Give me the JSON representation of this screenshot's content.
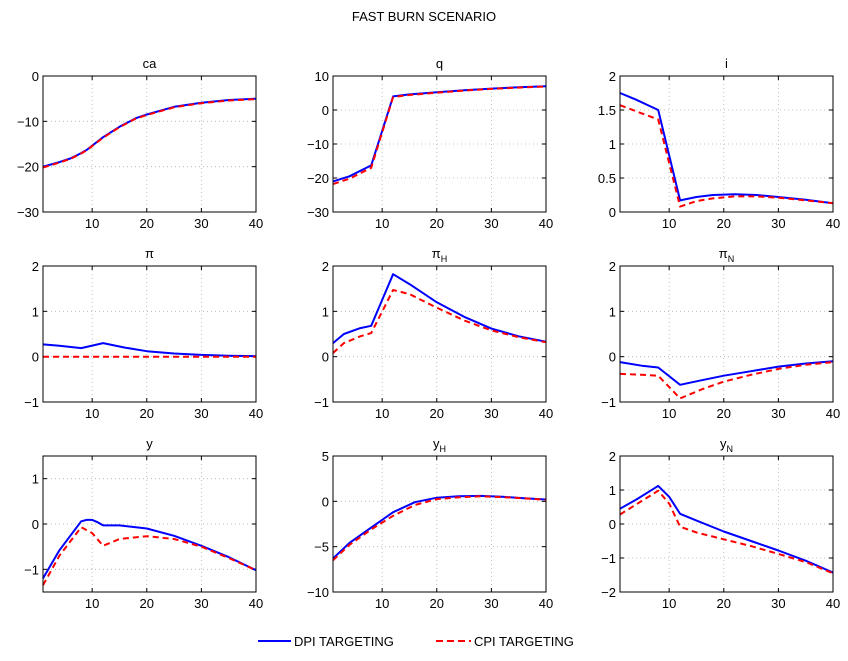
{
  "figure": {
    "title": "FAST BURN SCENARIO",
    "legend": {
      "placement": "bottom-center",
      "entries": [
        {
          "label": "DPI TARGETING",
          "color": "#0000ff",
          "dash": "solid"
        },
        {
          "label": "CPI TARGETING",
          "color": "#ff0000",
          "dash": "dashed"
        }
      ]
    }
  },
  "chart_data": [
    {
      "type": "line",
      "title": "ca",
      "xlim": [
        1,
        40
      ],
      "xticks": [
        10,
        20,
        30,
        40
      ],
      "ylim": [
        -30,
        0
      ],
      "yticks": [
        -30,
        -20,
        -10,
        0
      ],
      "grid": true,
      "series": [
        {
          "name": "DPI TARGETING",
          "x": [
            1,
            4,
            6,
            8,
            9,
            12,
            15,
            18,
            20,
            25,
            30,
            35,
            40
          ],
          "y": [
            -20,
            -19,
            -18.2,
            -17,
            -16.3,
            -13.5,
            -11.2,
            -9.3,
            -8.5,
            -6.8,
            -5.9,
            -5.3,
            -5
          ]
        },
        {
          "name": "CPI TARGETING",
          "x": [
            1,
            4,
            6,
            8,
            9,
            12,
            15,
            18,
            20,
            25,
            30,
            35,
            40
          ],
          "y": [
            -20.2,
            -19.1,
            -18.3,
            -17.1,
            -16.4,
            -13.6,
            -11.3,
            -9.4,
            -8.6,
            -6.9,
            -6,
            -5.4,
            -5.1
          ]
        }
      ]
    },
    {
      "type": "line",
      "title": "q",
      "xlim": [
        1,
        40
      ],
      "xticks": [
        10,
        20,
        30,
        40
      ],
      "ylim": [
        -30,
        10
      ],
      "yticks": [
        -30,
        -20,
        -10,
        0,
        10
      ],
      "grid": true,
      "series": [
        {
          "name": "DPI TARGETING",
          "x": [
            1,
            4,
            8,
            12,
            15,
            20,
            25,
            30,
            35,
            40
          ],
          "y": [
            -21,
            -19.5,
            -16.3,
            4,
            4.6,
            5.2,
            5.8,
            6.3,
            6.7,
            7
          ]
        },
        {
          "name": "CPI TARGETING",
          "x": [
            1,
            4,
            8,
            12,
            15,
            20,
            25,
            30,
            35,
            40
          ],
          "y": [
            -21.8,
            -20.2,
            -17,
            3.8,
            4.4,
            5.1,
            5.7,
            6.2,
            6.6,
            6.9
          ]
        }
      ]
    },
    {
      "type": "line",
      "title": "i",
      "xlim": [
        1,
        40
      ],
      "xticks": [
        10,
        20,
        30,
        40
      ],
      "ylim": [
        0,
        2
      ],
      "yticks": [
        0,
        0.5,
        1,
        1.5,
        2
      ],
      "grid": true,
      "series": [
        {
          "name": "DPI TARGETING",
          "x": [
            1,
            4,
            8,
            12,
            15,
            18,
            22,
            26,
            30,
            35,
            40
          ],
          "y": [
            1.75,
            1.65,
            1.5,
            0.17,
            0.22,
            0.25,
            0.26,
            0.25,
            0.22,
            0.18,
            0.13
          ]
        },
        {
          "name": "CPI TARGETING",
          "x": [
            1,
            4,
            8,
            12,
            15,
            18,
            22,
            26,
            30,
            35,
            40
          ],
          "y": [
            1.57,
            1.48,
            1.36,
            0.08,
            0.16,
            0.2,
            0.23,
            0.23,
            0.21,
            0.17,
            0.13
          ]
        }
      ]
    },
    {
      "type": "line",
      "title": "π",
      "xlim": [
        1,
        40
      ],
      "xticks": [
        10,
        20,
        30,
        40
      ],
      "ylim": [
        -1,
        2
      ],
      "yticks": [
        -1,
        0,
        1,
        2
      ],
      "grid": true,
      "series": [
        {
          "name": "DPI TARGETING",
          "x": [
            1,
            4,
            8,
            12,
            16,
            20,
            25,
            30,
            35,
            40
          ],
          "y": [
            0.27,
            0.24,
            0.19,
            0.3,
            0.2,
            0.12,
            0.07,
            0.04,
            0.02,
            0.01
          ]
        },
        {
          "name": "CPI TARGETING",
          "x": [
            1,
            10,
            20,
            30,
            40
          ],
          "y": [
            0,
            0,
            0,
            0,
            0
          ]
        }
      ]
    },
    {
      "type": "line",
      "title": "π_H",
      "xlim": [
        1,
        40
      ],
      "xticks": [
        10,
        20,
        30,
        40
      ],
      "ylim": [
        -1,
        2
      ],
      "yticks": [
        -1,
        0,
        1,
        2
      ],
      "grid": true,
      "series": [
        {
          "name": "DPI TARGETING",
          "x": [
            1,
            3,
            6,
            8,
            12,
            15,
            20,
            25,
            30,
            35,
            40
          ],
          "y": [
            0.3,
            0.5,
            0.63,
            0.68,
            1.82,
            1.6,
            1.2,
            0.88,
            0.62,
            0.45,
            0.33
          ]
        },
        {
          "name": "CPI TARGETING",
          "x": [
            1,
            3,
            6,
            8,
            12,
            15,
            20,
            25,
            30,
            35,
            40
          ],
          "y": [
            0.08,
            0.3,
            0.45,
            0.52,
            1.47,
            1.38,
            1.08,
            0.8,
            0.58,
            0.43,
            0.32
          ]
        }
      ]
    },
    {
      "type": "line",
      "title": "π_N",
      "xlim": [
        1,
        40
      ],
      "xticks": [
        10,
        20,
        30,
        40
      ],
      "ylim": [
        -1,
        2
      ],
      "yticks": [
        -1,
        0,
        1,
        2
      ],
      "grid": true,
      "series": [
        {
          "name": "DPI TARGETING",
          "x": [
            1,
            5,
            8,
            12,
            16,
            20,
            25,
            30,
            35,
            40
          ],
          "y": [
            -0.12,
            -0.2,
            -0.24,
            -0.62,
            -0.52,
            -0.42,
            -0.32,
            -0.22,
            -0.15,
            -0.1
          ]
        },
        {
          "name": "CPI TARGETING",
          "x": [
            1,
            5,
            8,
            12,
            16,
            20,
            25,
            30,
            35,
            40
          ],
          "y": [
            -0.38,
            -0.4,
            -0.42,
            -0.92,
            -0.72,
            -0.55,
            -0.4,
            -0.27,
            -0.18,
            -0.12
          ]
        }
      ]
    },
    {
      "type": "line",
      "title": "y",
      "xlim": [
        1,
        40
      ],
      "xticks": [
        10,
        20,
        30,
        40
      ],
      "ylim": [
        -1.5,
        1.5
      ],
      "yticks": [
        -1,
        0,
        1
      ],
      "grid": true,
      "series": [
        {
          "name": "DPI TARGETING",
          "x": [
            1,
            4,
            8,
            9,
            10,
            11,
            12,
            15,
            20,
            25,
            30,
            35,
            40
          ],
          "y": [
            -1.2,
            -0.58,
            0.06,
            0.09,
            0.09,
            0.04,
            -0.03,
            -0.03,
            -0.1,
            -0.26,
            -0.48,
            -0.73,
            -1.02
          ]
        },
        {
          "name": "CPI TARGETING",
          "x": [
            1,
            4,
            8,
            10,
            12,
            15,
            20,
            25,
            30,
            35,
            40
          ],
          "y": [
            -1.35,
            -0.7,
            -0.07,
            -0.2,
            -0.48,
            -0.33,
            -0.27,
            -0.33,
            -0.5,
            -0.75,
            -1.02
          ]
        }
      ]
    },
    {
      "type": "line",
      "title": "y_H",
      "xlim": [
        1,
        40
      ],
      "xticks": [
        10,
        20,
        30,
        40
      ],
      "ylim": [
        -10,
        5
      ],
      "yticks": [
        -10,
        -5,
        0,
        5
      ],
      "grid": true,
      "series": [
        {
          "name": "DPI TARGETING",
          "x": [
            1,
            4,
            8,
            12,
            16,
            20,
            24,
            28,
            32,
            36,
            40
          ],
          "y": [
            -6.3,
            -4.6,
            -2.9,
            -1.2,
            -0.1,
            0.4,
            0.55,
            0.6,
            0.5,
            0.35,
            0.2
          ]
        },
        {
          "name": "CPI TARGETING",
          "x": [
            1,
            4,
            8,
            12,
            16,
            20,
            24,
            28,
            32,
            36,
            40
          ],
          "y": [
            -6.5,
            -4.8,
            -3.1,
            -1.6,
            -0.4,
            0.25,
            0.45,
            0.55,
            0.47,
            0.33,
            0.18
          ]
        }
      ]
    },
    {
      "type": "line",
      "title": "y_N",
      "xlim": [
        1,
        40
      ],
      "xticks": [
        10,
        20,
        30,
        40
      ],
      "ylim": [
        -2,
        2
      ],
      "yticks": [
        -2,
        -1,
        0,
        1,
        2
      ],
      "grid": true,
      "series": [
        {
          "name": "DPI TARGETING",
          "x": [
            1,
            4,
            7,
            8,
            10,
            12,
            15,
            20,
            25,
            30,
            35,
            40
          ],
          "y": [
            0.45,
            0.72,
            1.02,
            1.12,
            0.8,
            0.3,
            0.1,
            -0.22,
            -0.5,
            -0.78,
            -1.08,
            -1.43
          ]
        },
        {
          "name": "CPI TARGETING",
          "x": [
            1,
            4,
            7,
            8,
            10,
            12,
            15,
            20,
            25,
            30,
            35,
            40
          ],
          "y": [
            0.28,
            0.58,
            0.88,
            0.98,
            0.6,
            -0.08,
            -0.25,
            -0.45,
            -0.65,
            -0.88,
            -1.12,
            -1.45
          ]
        }
      ]
    }
  ]
}
